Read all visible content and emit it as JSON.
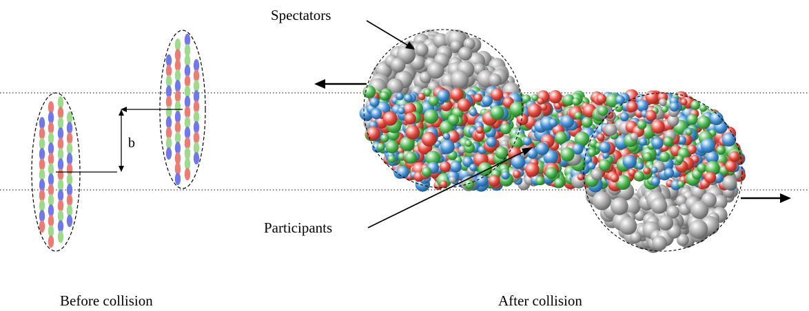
{
  "labels": {
    "impact_parameter": "b",
    "spectators": "Spectators",
    "participants": "Participants",
    "before": "Before collision",
    "after": "After collision"
  },
  "colors": {
    "nucleon_red": "#ee7b72",
    "nucleon_green": "#9cdb8a",
    "nucleon_blue": "#6f78ee",
    "sphere_grey": "#a6a6a6",
    "sphere_red": "#e8463a",
    "sphere_green": "#47b84a",
    "sphere_blue": "#3d8fd6",
    "line": "#000000"
  }
}
